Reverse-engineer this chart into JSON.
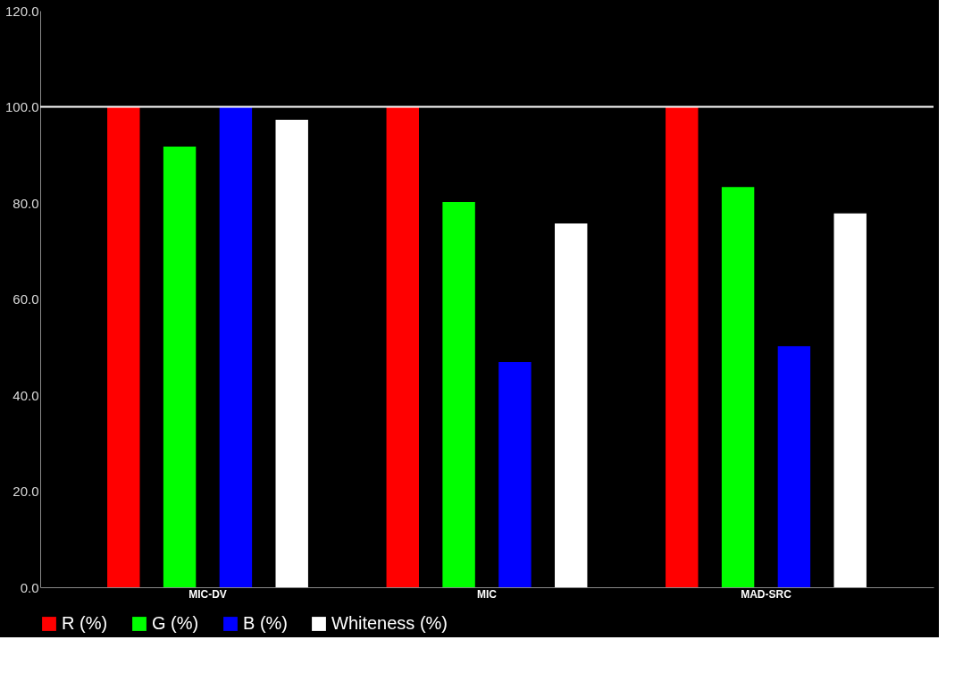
{
  "chart_data": {
    "type": "bar",
    "categories": [
      "MIC-DV",
      "MIC",
      "MAD-SRC"
    ],
    "series": [
      {
        "name": "R (%)",
        "color": "#ff0000",
        "values": [
          100,
          100,
          100
        ]
      },
      {
        "name": "G (%)",
        "color": "#00ff00",
        "values": [
          91.7,
          80.2,
          83.3
        ]
      },
      {
        "name": "B (%)",
        "color": "#0000ff",
        "values": [
          100,
          46.9,
          50.2
        ]
      },
      {
        "name": "Whiteness (%)",
        "color": "#ffffff",
        "values": [
          97.3,
          75.7,
          77.8
        ]
      }
    ],
    "ylim": [
      0,
      120
    ],
    "yticks": [
      {
        "value": 0,
        "label": "0.0"
      },
      {
        "value": 20,
        "label": "20.0"
      },
      {
        "value": 40,
        "label": "40.0"
      },
      {
        "value": 60,
        "label": "60.0"
      },
      {
        "value": 80,
        "label": "80.0"
      },
      {
        "value": 100,
        "label": "100.0"
      },
      {
        "value": 120,
        "label": "120.0"
      }
    ],
    "ref_lines": [
      {
        "axis": "y",
        "value": 100,
        "label": null,
        "color": "#ffffff"
      }
    ],
    "grid": false,
    "legend": "bottom"
  }
}
